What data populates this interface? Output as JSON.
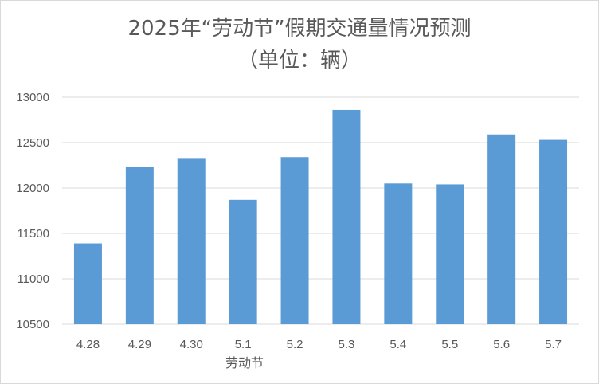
{
  "chart_data": {
    "type": "bar",
    "title": "2025年“劳动节”假期交通量情况预测",
    "subtitle": "（单位：辆）",
    "xlabel": "劳动节",
    "ylabel": "",
    "categories": [
      "4.28",
      "4.29",
      "4.30",
      "5.1",
      "5.2",
      "5.3",
      "5.4",
      "5.5",
      "5.6",
      "5.7"
    ],
    "values": [
      11390,
      12230,
      12330,
      11870,
      12340,
      12860,
      12050,
      12040,
      12590,
      12530
    ],
    "ylim": [
      10500,
      13000
    ],
    "yticks": [
      10500,
      11000,
      11500,
      12000,
      12500,
      13000
    ],
    "grid": true,
    "legend": "none",
    "bar_color": "#5b9bd5",
    "grid_color": "#d9d9d9",
    "text_color": "#595959"
  }
}
